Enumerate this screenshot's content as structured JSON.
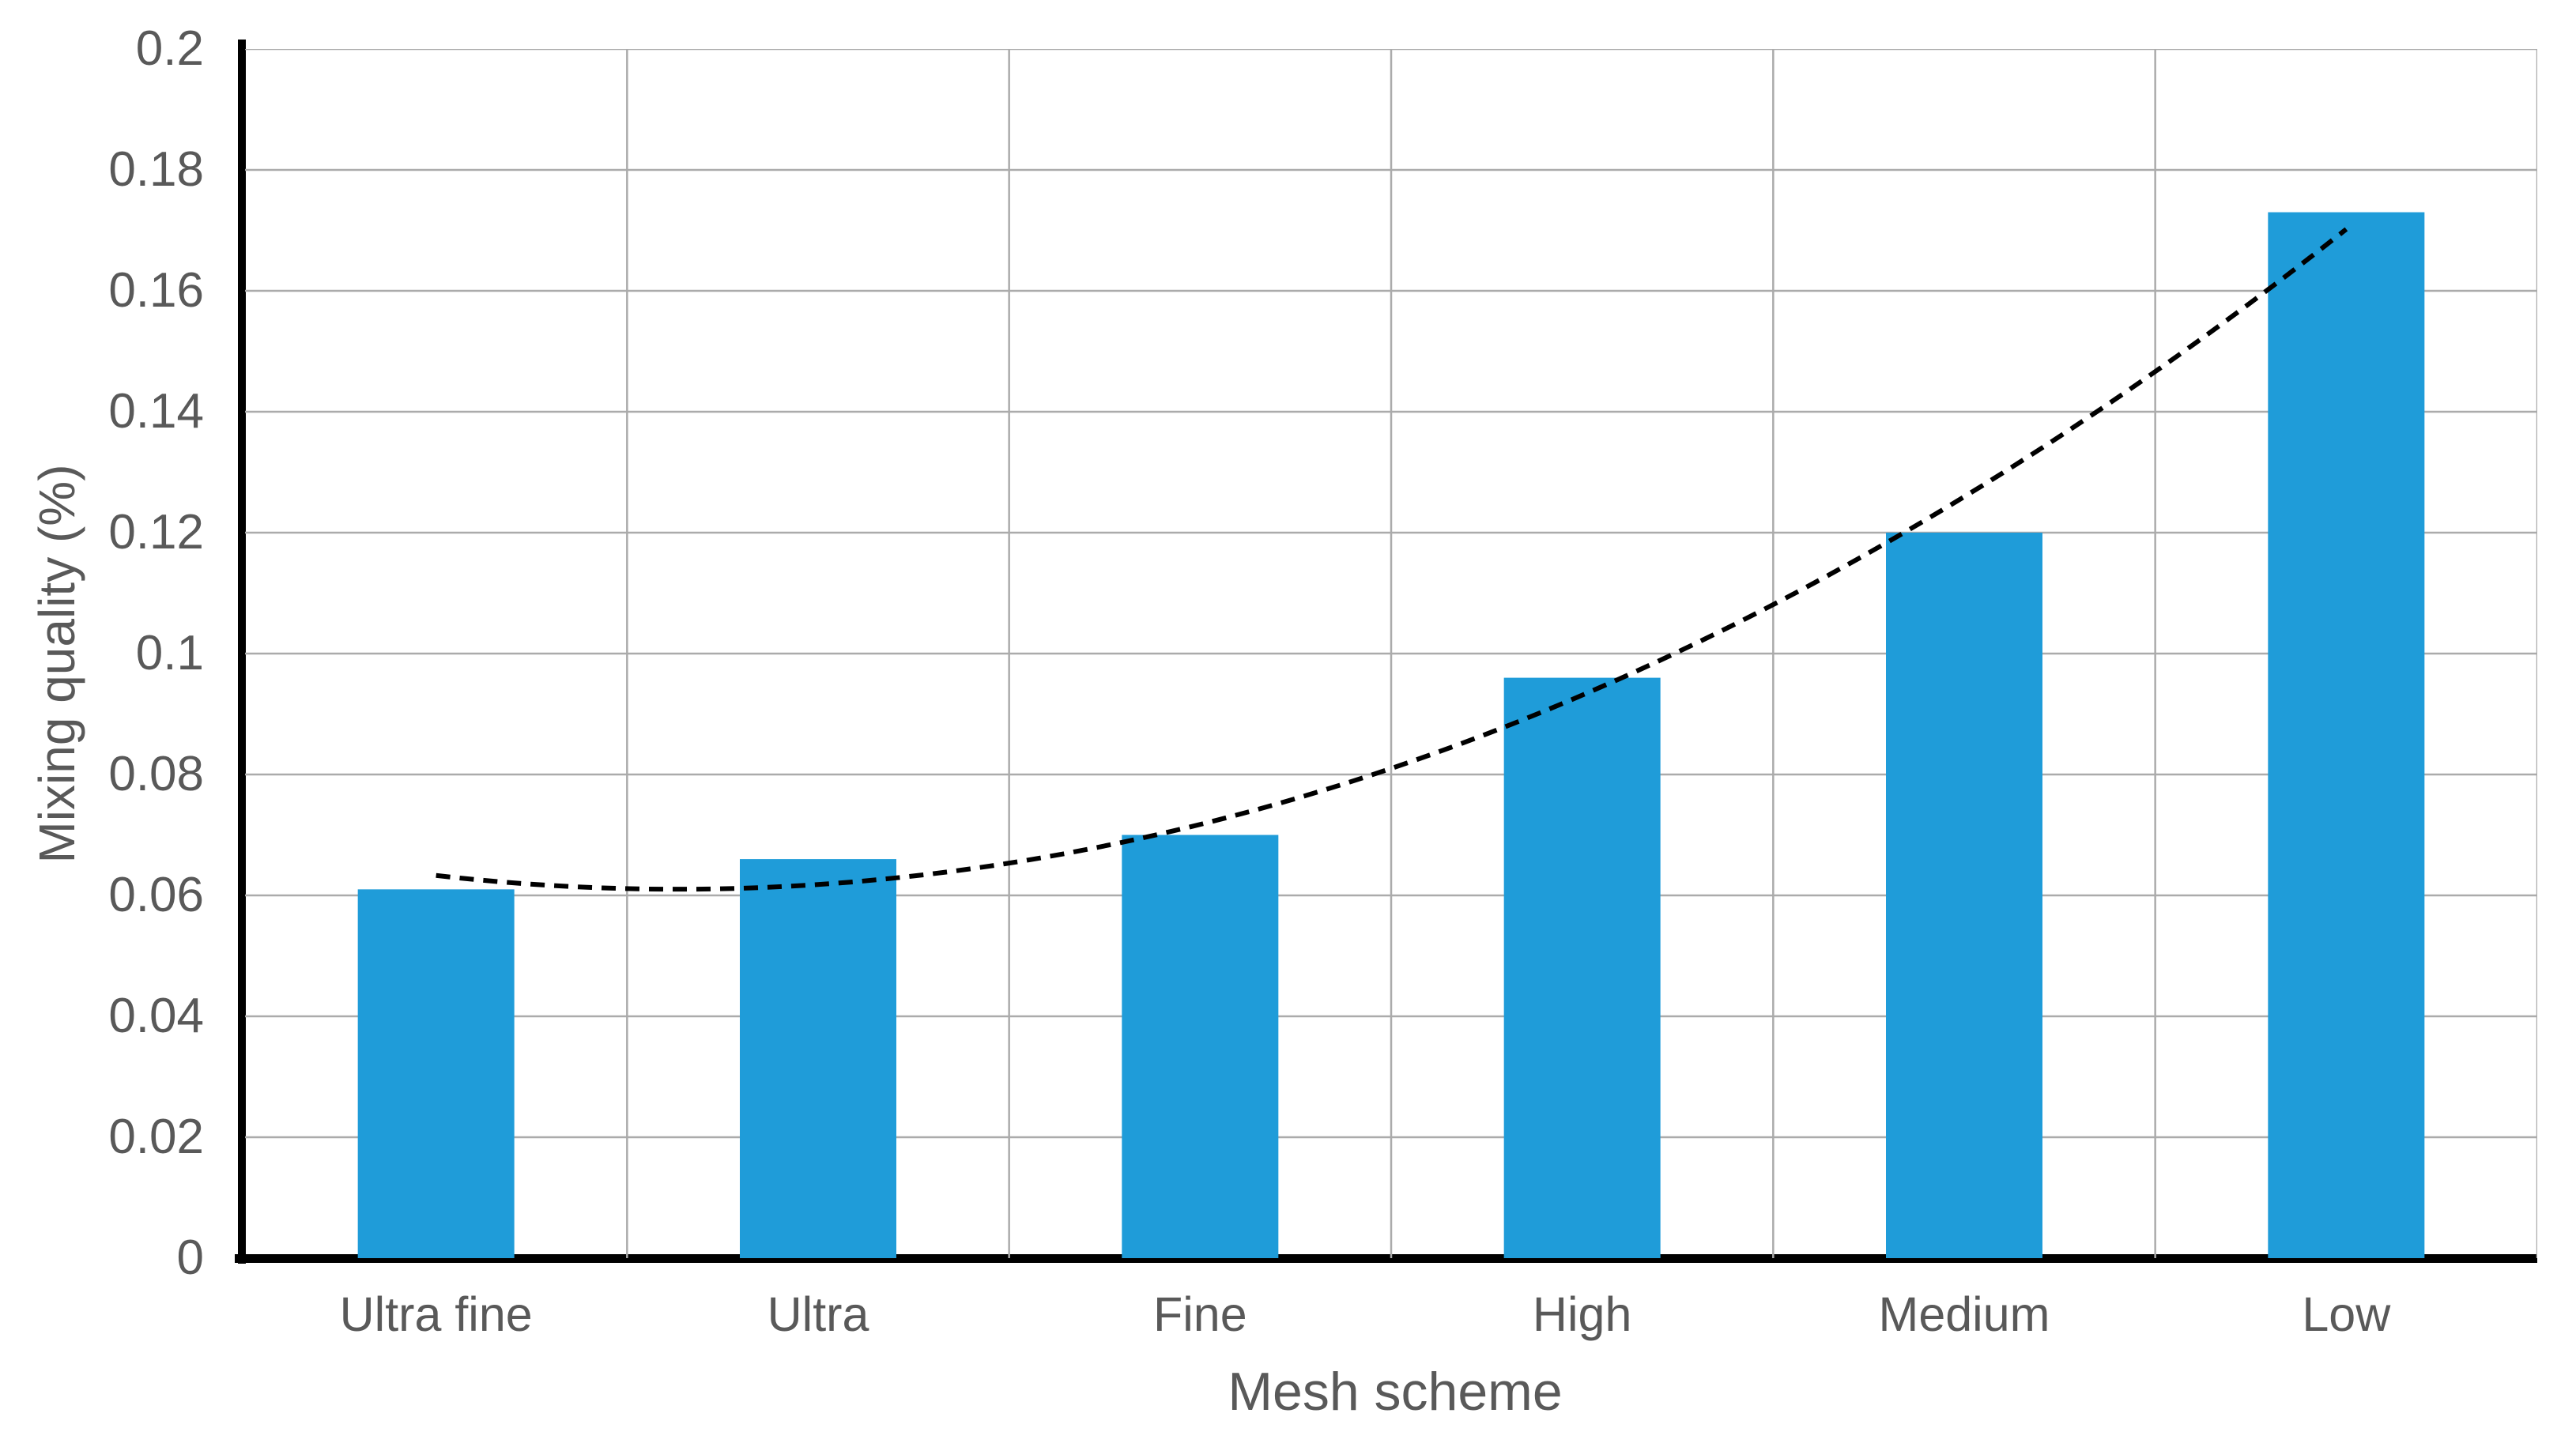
{
  "chart_data": {
    "type": "bar",
    "title": "",
    "xlabel": "Mesh scheme",
    "ylabel": "Mixing quality (%)",
    "categories": [
      "Ultra fine",
      "Ultra",
      "Fine",
      "High",
      "Medium",
      "Low"
    ],
    "values": [
      0.061,
      0.066,
      0.07,
      0.096,
      0.12,
      0.173
    ],
    "ylim": [
      0,
      0.2
    ],
    "ytick_step": 0.02,
    "y_tick_labels": [
      "0",
      "0.02",
      "0.04",
      "0.06",
      "0.08",
      "0.1",
      "0.12",
      "0.14",
      "0.16",
      "0.18",
      "0.2"
    ],
    "grid": {
      "horizontal": true,
      "vertical": true
    },
    "legend": false,
    "colors": {
      "bar": "#1F9CD9",
      "gridline": "#ABABAB",
      "axis": "#000000",
      "text": "#595959",
      "trendline": "#000000",
      "background": "#FFFFFF"
    },
    "trendline": {
      "type": "polynomial",
      "order": 2,
      "style": "dashed",
      "coefficients": {
        "a": 0.0633,
        "b": -0.00722,
        "c": 0.00572
      }
    }
  }
}
